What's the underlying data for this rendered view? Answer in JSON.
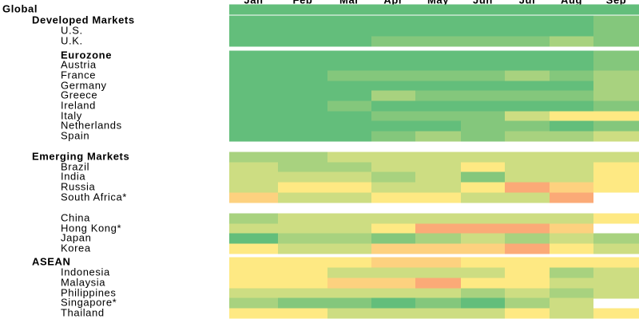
{
  "chart_data": {
    "type": "heatmap",
    "columns": [
      "Jan",
      "Feb",
      "Mar",
      "Apr",
      "May",
      "Jun",
      "Jul",
      "Aug",
      "Sep"
    ],
    "rows": [
      {
        "label": "Global",
        "level": 0,
        "bold": true,
        "colors": [
          "#63be7b",
          "#63be7b",
          "#63be7b",
          "#63be7b",
          "#63be7b",
          "#63be7b",
          "#63be7b",
          "#63be7b",
          "#63be7b"
        ]
      },
      {
        "label": "Developed Markets",
        "level": 1,
        "bold": true,
        "colors": [
          "#63be7b",
          "#63be7b",
          "#63be7b",
          "#63be7b",
          "#63be7b",
          "#63be7b",
          "#63be7b",
          "#63be7b",
          "#84c77c"
        ]
      },
      {
        "label": "U.S.",
        "level": 2,
        "bold": false,
        "colors": [
          "#63be7b",
          "#63be7b",
          "#63be7b",
          "#63be7b",
          "#63be7b",
          "#63be7b",
          "#63be7b",
          "#63be7b",
          "#84c77c"
        ]
      },
      {
        "label": "U.K.",
        "level": 2,
        "bold": false,
        "colors": [
          "#63be7b",
          "#63be7b",
          "#63be7b",
          "#84c77c",
          "#84c77c",
          "#84c77c",
          "#84c77c",
          "#a8d27f",
          "#84c77c"
        ]
      },
      {
        "label": "Eurozone",
        "level": 2,
        "bold": true,
        "colors": [
          "#63be7b",
          "#63be7b",
          "#63be7b",
          "#63be7b",
          "#63be7b",
          "#63be7b",
          "#63be7b",
          "#63be7b",
          "#84c77c"
        ]
      },
      {
        "label": "Austria",
        "level": 2,
        "bold": false,
        "colors": [
          "#63be7b",
          "#63be7b",
          "#63be7b",
          "#63be7b",
          "#63be7b",
          "#63be7b",
          "#63be7b",
          "#63be7b",
          "#84c77c"
        ]
      },
      {
        "label": "France",
        "level": 2,
        "bold": false,
        "colors": [
          "#63be7b",
          "#63be7b",
          "#84c77c",
          "#84c77c",
          "#84c77c",
          "#84c77c",
          "#a8d27f",
          "#84c77c",
          "#a8d27f"
        ]
      },
      {
        "label": "Germany",
        "level": 2,
        "bold": false,
        "colors": [
          "#63be7b",
          "#63be7b",
          "#63be7b",
          "#63be7b",
          "#63be7b",
          "#63be7b",
          "#63be7b",
          "#63be7b",
          "#a8d27f"
        ]
      },
      {
        "label": "Greece",
        "level": 2,
        "bold": false,
        "colors": [
          "#63be7b",
          "#63be7b",
          "#63be7b",
          "#a8d27f",
          "#84c77c",
          "#84c77c",
          "#84c77c",
          "#84c77c",
          "#a8d27f"
        ]
      },
      {
        "label": "Ireland",
        "level": 2,
        "bold": false,
        "colors": [
          "#63be7b",
          "#63be7b",
          "#84c77c",
          "#63be7b",
          "#63be7b",
          "#63be7b",
          "#63be7b",
          "#63be7b",
          "#84c77c"
        ]
      },
      {
        "label": "Italy",
        "level": 2,
        "bold": false,
        "colors": [
          "#63be7b",
          "#63be7b",
          "#63be7b",
          "#84c77c",
          "#84c77c",
          "#84c77c",
          "#cddd82",
          "#fee983",
          "#fee983"
        ]
      },
      {
        "label": "Netherlands",
        "level": 2,
        "bold": false,
        "colors": [
          "#63be7b",
          "#63be7b",
          "#63be7b",
          "#63be7b",
          "#63be7b",
          "#84c77c",
          "#84c77c",
          "#63be7b",
          "#84c77c"
        ]
      },
      {
        "label": "Spain",
        "level": 2,
        "bold": false,
        "colors": [
          "#63be7b",
          "#63be7b",
          "#63be7b",
          "#84c77c",
          "#a8d27f",
          "#84c77c",
          "#a8d27f",
          "#a8d27f",
          "#cddd82"
        ]
      },
      {
        "label": "Emerging Markets",
        "level": 1,
        "bold": true,
        "colors": [
          "#a8d27f",
          "#a8d27f",
          "#cddd82",
          "#cddd82",
          "#cddd82",
          "#cddd82",
          "#cddd82",
          "#cddd82",
          "#cddd82"
        ]
      },
      {
        "label": "Brazil",
        "level": 2,
        "bold": false,
        "colors": [
          "#cddd82",
          "#a8d27f",
          "#a8d27f",
          "#cddd82",
          "#cddd82",
          "#fee983",
          "#cddd82",
          "#cddd82",
          "#fee983"
        ]
      },
      {
        "label": "India",
        "level": 2,
        "bold": false,
        "colors": [
          "#cddd82",
          "#cddd82",
          "#cddd82",
          "#a8d27f",
          "#cddd82",
          "#84c77c",
          "#cddd82",
          "#cddd82",
          "#fee983"
        ]
      },
      {
        "label": "Russia",
        "level": 2,
        "bold": false,
        "colors": [
          "#cddd82",
          "#fee983",
          "#fee983",
          "#cddd82",
          "#cddd82",
          "#fee983",
          "#fbaa77",
          "#fdd17f",
          "#fee983"
        ]
      },
      {
        "label": "South Africa*",
        "level": 2,
        "bold": false,
        "colors": [
          "#fdd17f",
          "#cddd82",
          "#cddd82",
          "#fee983",
          "#fee983",
          "#cddd82",
          "#cddd82",
          "#fbaa77",
          null
        ]
      },
      {
        "label": "China",
        "level": 2,
        "bold": false,
        "colors": [
          "#a8d27f",
          "#cddd82",
          "#cddd82",
          "#cddd82",
          "#cddd82",
          "#cddd82",
          "#cddd82",
          "#cddd82",
          "#fee983"
        ]
      },
      {
        "label": "Hong Kong*",
        "level": 2,
        "bold": false,
        "colors": [
          "#cddd82",
          "#cddd82",
          "#cddd82",
          "#fee983",
          "#fbaa77",
          "#fbaa77",
          "#fbaa77",
          "#fdd17f",
          null
        ]
      },
      {
        "label": "Japan",
        "level": 2,
        "bold": false,
        "colors": [
          "#63be7b",
          "#a8d27f",
          "#a8d27f",
          "#84c77c",
          "#a8d27f",
          "#cddd82",
          "#a8d27f",
          "#cddd82",
          "#a8d27f"
        ]
      },
      {
        "label": "Korea",
        "level": 2,
        "bold": false,
        "colors": [
          "#fee983",
          "#cddd82",
          "#cddd82",
          "#fdd17f",
          "#fdd17f",
          "#fdd17f",
          "#fbaa77",
          "#fee983",
          "#cddd82"
        ]
      },
      {
        "label": "ASEAN",
        "level": 1,
        "bold": true,
        "colors": [
          "#fee983",
          "#fee983",
          "#fee983",
          "#fdd17f",
          "#fdd17f",
          "#fee983",
          "#fee983",
          "#fee983",
          "#fee983"
        ]
      },
      {
        "label": "Indonesia",
        "level": 2,
        "bold": false,
        "colors": [
          "#fee983",
          "#fee983",
          "#cddd82",
          "#cddd82",
          "#cddd82",
          "#cddd82",
          "#fee983",
          "#a8d27f",
          "#cddd82"
        ]
      },
      {
        "label": "Malaysia",
        "level": 2,
        "bold": false,
        "colors": [
          "#fee983",
          "#fee983",
          "#fdd17f",
          "#fdd17f",
          "#fbaa77",
          "#fee983",
          "#fee983",
          "#cddd82",
          "#cddd82"
        ]
      },
      {
        "label": "Philippines",
        "level": 2,
        "bold": false,
        "colors": [
          "#cddd82",
          "#cddd82",
          "#cddd82",
          "#cddd82",
          "#cddd82",
          "#a8d27f",
          "#cddd82",
          "#a8d27f",
          "#cddd82"
        ]
      },
      {
        "label": "Singapore*",
        "level": 2,
        "bold": false,
        "colors": [
          "#a8d27f",
          "#84c77c",
          "#84c77c",
          "#63be7b",
          "#84c77c",
          "#63be7b",
          "#a8d27f",
          "#cddd82",
          null
        ]
      },
      {
        "label": "Thailand",
        "level": 2,
        "bold": false,
        "colors": [
          "#fee983",
          "#fee983",
          "#cddd82",
          "#cddd82",
          "#cddd82",
          "#cddd82",
          "#fee983",
          "#cddd82",
          "#fee983"
        ]
      }
    ]
  }
}
